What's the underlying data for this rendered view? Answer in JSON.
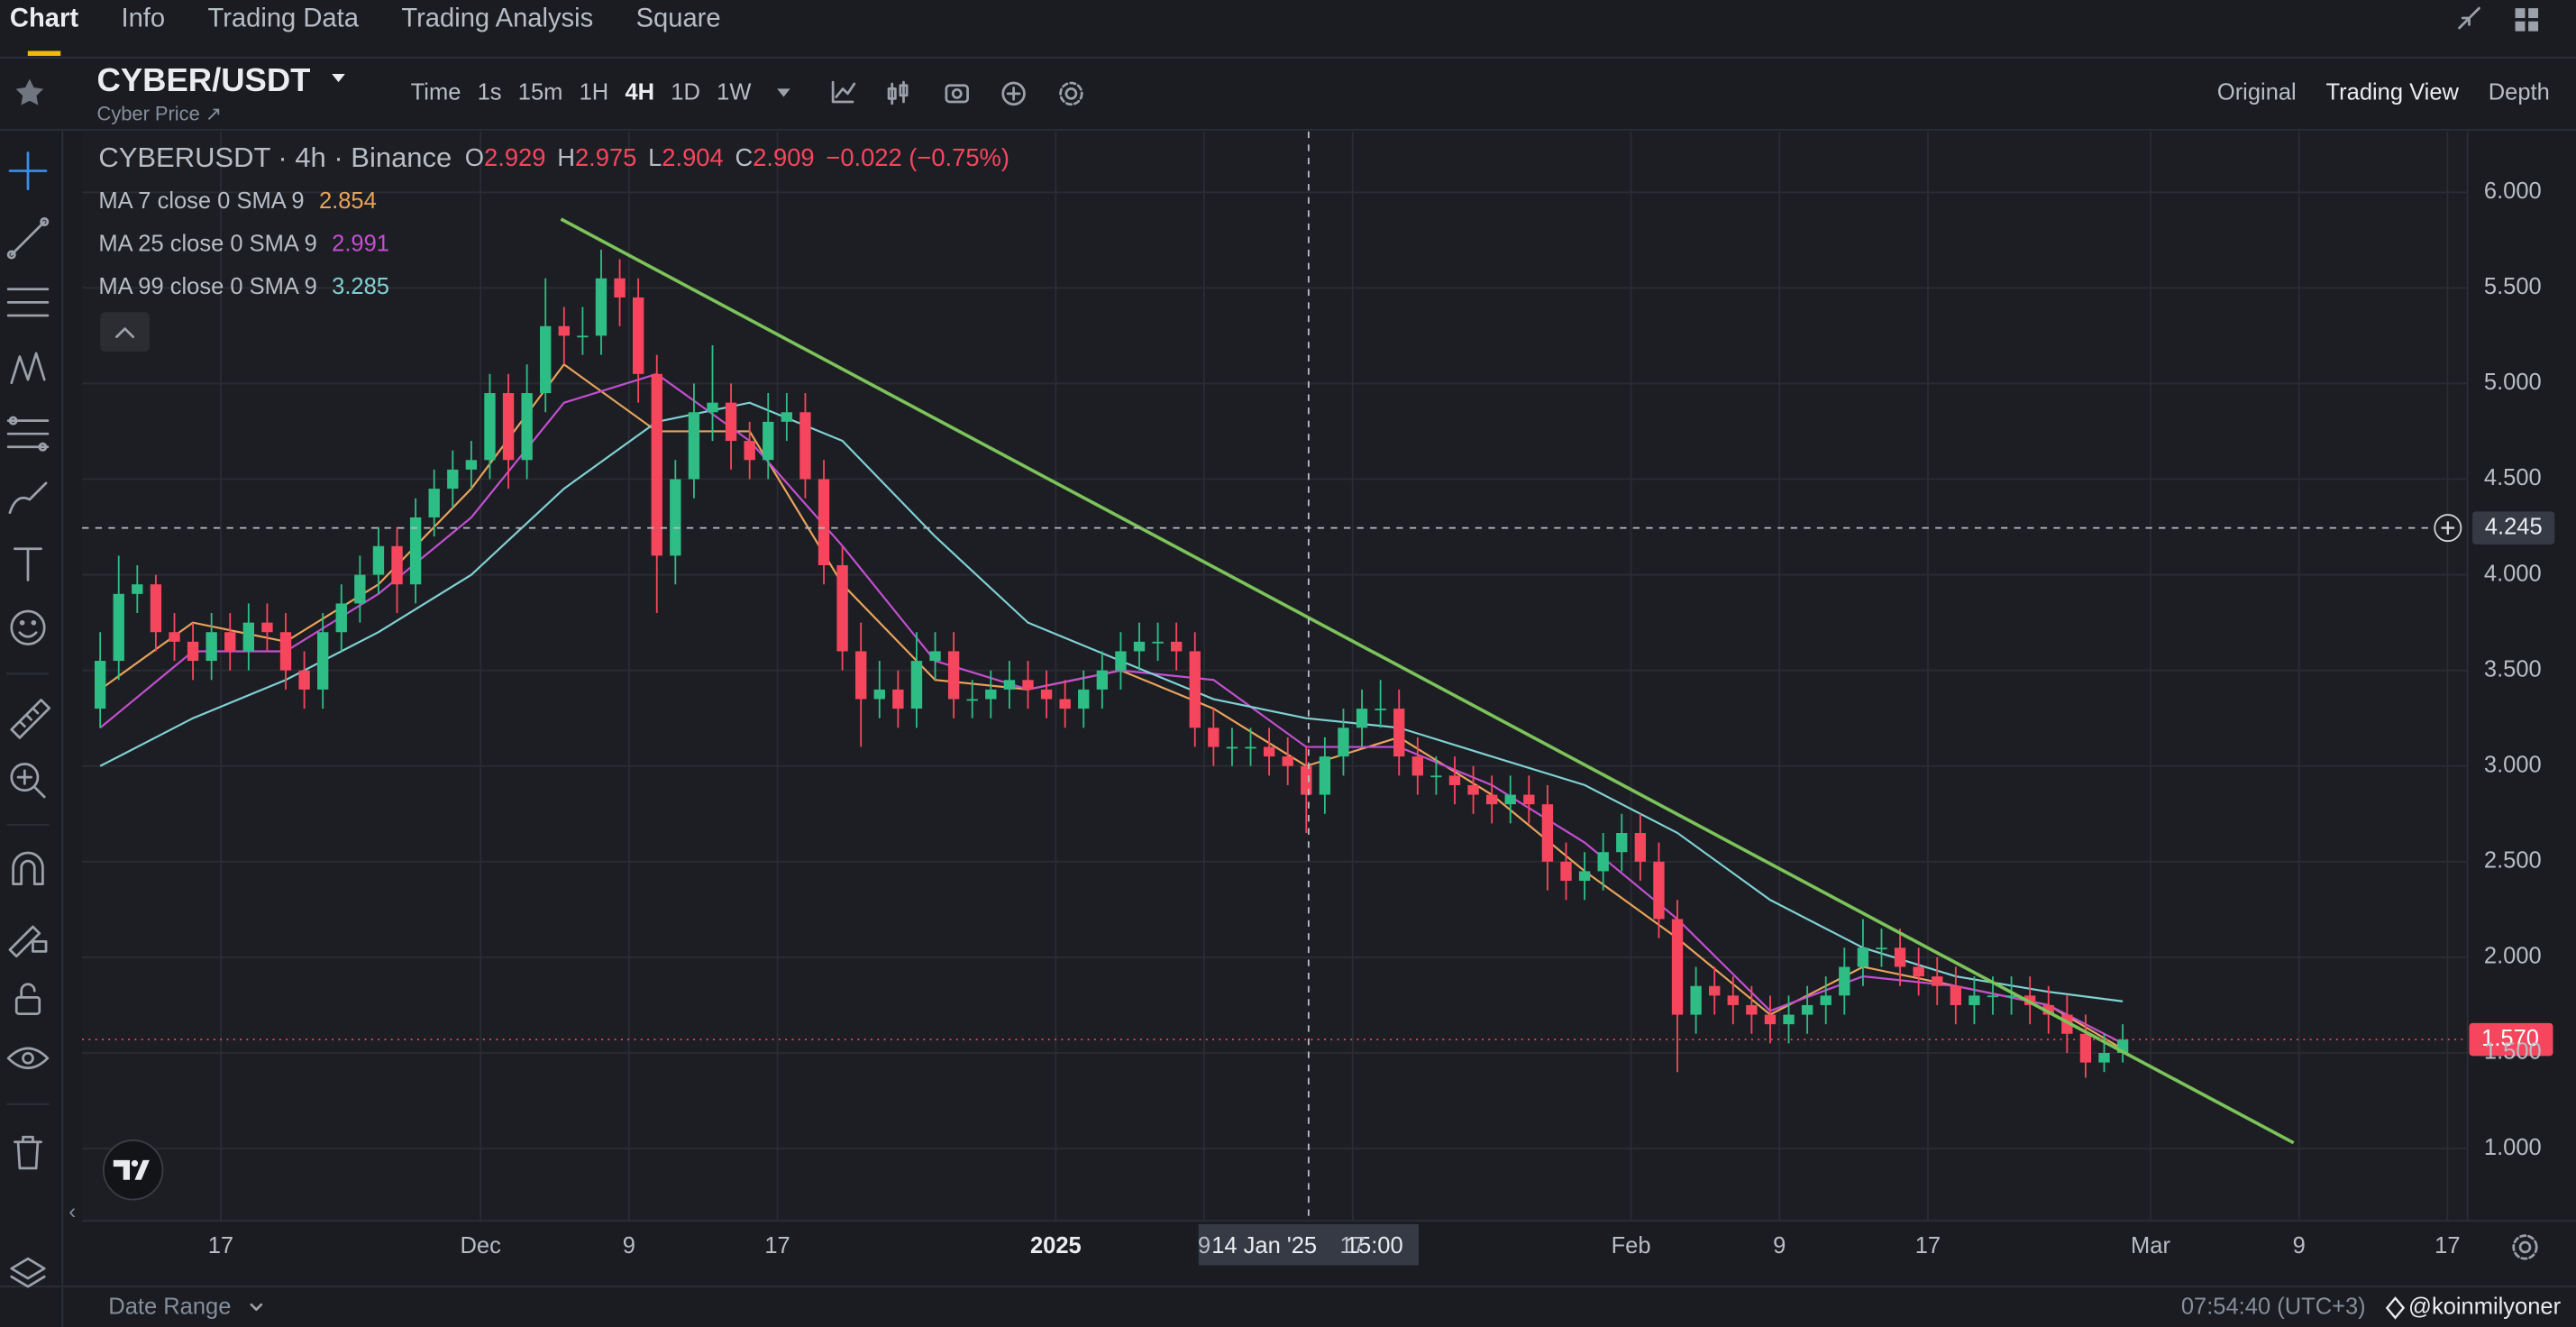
{
  "ui": {
    "tabs": [
      "Chart",
      "Info",
      "Trading Data",
      "Trading Analysis",
      "Square"
    ],
    "symbol": "CYBER/USDT",
    "subtitle": "Cyber Price ↗",
    "intervals": [
      "Time",
      "1s",
      "15m",
      "1H",
      "4H",
      "1D",
      "1W"
    ],
    "views": [
      "Original",
      "Trading View",
      "Depth"
    ],
    "selected": {
      "tab": "Chart",
      "interval": "4H",
      "view": "Trading View"
    },
    "footer": {
      "date_range": "Date Range",
      "clock": "07:54:40 (UTC+3)",
      "watermark": "@koinmilyoner"
    }
  },
  "chart_data": {
    "type": "candlestick",
    "title": "CYBERUSDT · 4h · Binance",
    "ohlc_letters": [
      "O",
      "H",
      "L",
      "C"
    ],
    "crosshair_candle": {
      "values": [
        2.929,
        2.975,
        2.904,
        2.909
      ],
      "change": "−0.022 (−0.75%)"
    },
    "up_color": "#2ebd85",
    "down_color": "#f6465d",
    "x": [
      "2024-11-10",
      "2024-11-11",
      "2024-11-12",
      "2024-11-13",
      "2024-11-14",
      "2024-11-15",
      "2024-11-16",
      "2024-11-17",
      "2024-11-18",
      "2024-11-19",
      "2024-11-20",
      "2024-11-21",
      "2024-11-22",
      "2024-11-23",
      "2024-11-24",
      "2024-11-25",
      "2024-11-26",
      "2024-11-27",
      "2024-11-28",
      "2024-11-29",
      "2024-11-30",
      "2024-12-01",
      "2024-12-02",
      "2024-12-03",
      "2024-12-04",
      "2024-12-05",
      "2024-12-06",
      "2024-12-07",
      "2024-12-08",
      "2024-12-09",
      "2024-12-10",
      "2024-12-11",
      "2024-12-12",
      "2024-12-13",
      "2024-12-14",
      "2024-12-15",
      "2024-12-16",
      "2024-12-17",
      "2024-12-18",
      "2024-12-19",
      "2024-12-20",
      "2024-12-21",
      "2024-12-22",
      "2024-12-23",
      "2024-12-24",
      "2024-12-25",
      "2024-12-26",
      "2024-12-27",
      "2024-12-28",
      "2024-12-29",
      "2024-12-30",
      "2024-12-31",
      "2025-01-01",
      "2025-01-02",
      "2025-01-03",
      "2025-01-04",
      "2025-01-05",
      "2025-01-06",
      "2025-01-07",
      "2025-01-08",
      "2025-01-09",
      "2025-01-10",
      "2025-01-11",
      "2025-01-12",
      "2025-01-13",
      "2025-01-14",
      "2025-01-15",
      "2025-01-16",
      "2025-01-17",
      "2025-01-18",
      "2025-01-19",
      "2025-01-20",
      "2025-01-21",
      "2025-01-22",
      "2025-01-23",
      "2025-01-24",
      "2025-01-25",
      "2025-01-26",
      "2025-01-27",
      "2025-01-28",
      "2025-01-29",
      "2025-01-30",
      "2025-01-31",
      "2025-02-01",
      "2025-02-02",
      "2025-02-03",
      "2025-02-04",
      "2025-02-05",
      "2025-02-06",
      "2025-02-07",
      "2025-02-08",
      "2025-02-09",
      "2025-02-10",
      "2025-02-11",
      "2025-02-12",
      "2025-02-13",
      "2025-02-14",
      "2025-02-15",
      "2025-02-16",
      "2025-02-17",
      "2025-02-18",
      "2025-02-19",
      "2025-02-20",
      "2025-02-21",
      "2025-02-22",
      "2025-02-23",
      "2025-02-24",
      "2025-02-25",
      "2025-02-26",
      "2025-02-27"
    ],
    "open": [
      3.3,
      3.55,
      3.9,
      3.95,
      3.7,
      3.65,
      3.55,
      3.7,
      3.6,
      3.75,
      3.7,
      3.5,
      3.4,
      3.7,
      3.85,
      4.0,
      4.15,
      3.95,
      4.3,
      4.45,
      4.55,
      4.6,
      4.95,
      4.6,
      4.95,
      5.3,
      5.25,
      5.25,
      5.55,
      5.45,
      5.05,
      4.1,
      4.5,
      4.85,
      4.9,
      4.7,
      4.6,
      4.8,
      4.85,
      4.5,
      4.05,
      3.6,
      3.35,
      3.4,
      3.3,
      3.55,
      3.6,
      3.35,
      3.35,
      3.4,
      3.45,
      3.4,
      3.35,
      3.3,
      3.4,
      3.5,
      3.6,
      3.65,
      3.65,
      3.6,
      3.2,
      3.1,
      3.1,
      3.1,
      3.05,
      3.0,
      2.85,
      3.05,
      3.2,
      3.3,
      3.3,
      3.05,
      2.95,
      2.95,
      2.9,
      2.85,
      2.8,
      2.85,
      2.8,
      2.5,
      2.4,
      2.45,
      2.55,
      2.65,
      2.5,
      2.2,
      1.7,
      1.85,
      1.8,
      1.75,
      1.7,
      1.65,
      1.7,
      1.75,
      1.8,
      1.95,
      2.05,
      2.05,
      1.95,
      1.9,
      1.85,
      1.75,
      1.8,
      1.8,
      1.8,
      1.75,
      1.7,
      1.6,
      1.45,
      1.5
    ],
    "high": [
      3.7,
      4.1,
      4.05,
      4.0,
      3.8,
      3.75,
      3.8,
      3.8,
      3.85,
      3.85,
      3.8,
      3.6,
      3.8,
      3.95,
      4.1,
      4.25,
      4.25,
      4.4,
      4.55,
      4.65,
      4.7,
      5.05,
      5.05,
      5.1,
      5.55,
      5.4,
      5.4,
      5.7,
      5.65,
      5.55,
      5.15,
      4.6,
      5.0,
      5.2,
      5.0,
      4.8,
      4.95,
      4.95,
      4.95,
      4.6,
      4.15,
      3.75,
      3.55,
      3.5,
      3.7,
      3.7,
      3.7,
      3.45,
      3.5,
      3.55,
      3.55,
      3.5,
      3.45,
      3.5,
      3.6,
      3.7,
      3.75,
      3.75,
      3.75,
      3.7,
      3.3,
      3.2,
      3.2,
      3.2,
      3.15,
      3.1,
      3.15,
      3.3,
      3.4,
      3.45,
      3.4,
      3.15,
      3.05,
      3.05,
      3.0,
      2.95,
      2.95,
      2.95,
      2.9,
      2.6,
      2.55,
      2.65,
      2.75,
      2.75,
      2.6,
      2.3,
      1.95,
      1.95,
      1.9,
      1.85,
      1.8,
      1.8,
      1.85,
      1.9,
      2.05,
      2.2,
      2.15,
      2.15,
      2.05,
      2.0,
      1.95,
      1.9,
      1.9,
      1.9,
      1.9,
      1.85,
      1.8,
      1.7,
      1.6,
      1.65
    ],
    "low": [
      3.2,
      3.45,
      3.8,
      3.6,
      3.55,
      3.45,
      3.45,
      3.5,
      3.5,
      3.6,
      3.4,
      3.3,
      3.3,
      3.6,
      3.75,
      3.9,
      3.8,
      3.85,
      4.2,
      4.35,
      4.45,
      4.5,
      4.45,
      4.5,
      4.85,
      5.1,
      5.15,
      5.15,
      5.3,
      4.9,
      3.8,
      3.95,
      4.4,
      4.7,
      4.55,
      4.5,
      4.5,
      4.7,
      4.4,
      3.95,
      3.5,
      3.1,
      3.25,
      3.2,
      3.2,
      3.45,
      3.25,
      3.25,
      3.25,
      3.3,
      3.3,
      3.25,
      3.2,
      3.2,
      3.3,
      3.4,
      3.5,
      3.55,
      3.5,
      3.1,
      3.0,
      3.0,
      3.0,
      2.95,
      2.9,
      2.65,
      2.75,
      2.95,
      3.1,
      3.2,
      2.95,
      2.85,
      2.85,
      2.8,
      2.75,
      2.7,
      2.7,
      2.7,
      2.35,
      2.3,
      2.3,
      2.35,
      2.45,
      2.4,
      2.1,
      1.4,
      1.6,
      1.7,
      1.65,
      1.6,
      1.55,
      1.55,
      1.6,
      1.65,
      1.7,
      1.85,
      1.95,
      1.85,
      1.8,
      1.75,
      1.65,
      1.65,
      1.7,
      1.7,
      1.65,
      1.6,
      1.5,
      1.37,
      1.4,
      1.45
    ],
    "close": [
      3.55,
      3.9,
      3.95,
      3.7,
      3.65,
      3.55,
      3.7,
      3.6,
      3.75,
      3.7,
      3.5,
      3.4,
      3.7,
      3.85,
      4.0,
      4.15,
      3.95,
      4.3,
      4.45,
      4.55,
      4.6,
      4.95,
      4.6,
      4.95,
      5.3,
      5.25,
      5.25,
      5.55,
      5.45,
      5.05,
      4.1,
      4.5,
      4.85,
      4.9,
      4.7,
      4.6,
      4.8,
      4.85,
      4.5,
      4.05,
      3.6,
      3.35,
      3.4,
      3.3,
      3.55,
      3.6,
      3.35,
      3.35,
      3.4,
      3.45,
      3.4,
      3.35,
      3.3,
      3.4,
      3.5,
      3.6,
      3.65,
      3.65,
      3.6,
      3.2,
      3.1,
      3.1,
      3.1,
      3.05,
      3.0,
      2.85,
      3.05,
      3.2,
      3.3,
      3.3,
      3.05,
      2.95,
      2.95,
      2.9,
      2.85,
      2.8,
      2.85,
      2.8,
      2.5,
      2.4,
      2.45,
      2.55,
      2.65,
      2.5,
      2.2,
      1.7,
      1.85,
      1.8,
      1.75,
      1.7,
      1.65,
      1.7,
      1.75,
      1.8,
      1.95,
      2.05,
      2.05,
      1.95,
      1.9,
      1.85,
      1.75,
      1.8,
      1.8,
      1.8,
      1.75,
      1.7,
      1.6,
      1.45,
      1.5,
      1.57
    ],
    "ma_x": [
      "2024-11-10",
      "2024-11-15",
      "2024-11-20",
      "2024-11-25",
      "2024-11-30",
      "2024-12-05",
      "2024-12-10",
      "2024-12-15",
      "2024-12-20",
      "2024-12-25",
      "2024-12-30",
      "2025-01-04",
      "2025-01-09",
      "2025-01-14",
      "2025-01-19",
      "2025-01-24",
      "2025-01-29",
      "2025-02-03",
      "2025-02-08",
      "2025-02-13",
      "2025-02-18",
      "2025-02-23",
      "2025-02-27"
    ],
    "indicators": [
      {
        "name": "MA 7 close 0 SMA 9",
        "color": "#e8a35c",
        "last": 2.854,
        "values": [
          3.4,
          3.75,
          3.65,
          3.95,
          4.45,
          5.1,
          4.75,
          4.75,
          3.95,
          3.45,
          3.4,
          3.5,
          3.3,
          3.0,
          3.15,
          2.85,
          2.45,
          2.1,
          1.7,
          1.95,
          1.85,
          1.75,
          1.52
        ]
      },
      {
        "name": "MA 25 close 0 SMA 9",
        "color": "#c34fd1",
        "last": 2.991,
        "values": [
          3.2,
          3.6,
          3.6,
          3.9,
          4.3,
          4.9,
          5.05,
          4.7,
          4.15,
          3.55,
          3.4,
          3.5,
          3.45,
          3.1,
          3.1,
          2.9,
          2.6,
          2.2,
          1.72,
          1.9,
          1.85,
          1.75,
          1.55
        ]
      },
      {
        "name": "MA 99 close 0 SMA 9",
        "color": "#7fd1d4",
        "last": 3.285,
        "values": [
          3.0,
          3.25,
          3.45,
          3.7,
          4.0,
          4.45,
          4.8,
          4.9,
          4.7,
          4.2,
          3.75,
          3.55,
          3.35,
          3.25,
          3.2,
          3.05,
          2.9,
          2.65,
          2.3,
          2.05,
          1.9,
          1.82,
          1.77
        ]
      }
    ],
    "trendline": {
      "color": "#7cc35a",
      "x": [
        "2024-12-05T08:00",
        "2025-03-08T17:00"
      ],
      "y": [
        5.86,
        1.03
      ]
    },
    "crosshair": {
      "x": "2025-01-14T15:00",
      "date_label": "14 Jan '25",
      "time_label": "15:00",
      "price": 4.245
    },
    "last_price": {
      "value": 1.57,
      "label": "1.570"
    },
    "xlim": [
      "2024-11-09T12:42",
      "2025-03-18T02:00"
    ],
    "xticks": [
      {
        "value": "2024-11-17",
        "label": "17"
      },
      {
        "value": "2024-12-01",
        "label": "Dec"
      },
      {
        "value": "2024-12-09",
        "label": "9"
      },
      {
        "value": "2024-12-17",
        "label": "17"
      },
      {
        "value": "2025-01-01",
        "label": "2025"
      },
      {
        "value": "2025-01-09",
        "label": "9"
      },
      {
        "value": "2025-01-17",
        "label": "17"
      },
      {
        "value": "2025-02-01",
        "label": "Feb"
      },
      {
        "value": "2025-02-09",
        "label": "9"
      },
      {
        "value": "2025-02-17",
        "label": "17"
      },
      {
        "value": "2025-03-01",
        "label": "Mar"
      },
      {
        "value": "2025-03-09",
        "label": "9"
      },
      {
        "value": "2025-03-17",
        "label": "17"
      }
    ],
    "ylim": [
      0.622,
      6.318
    ],
    "yticks": [
      {
        "value": 6,
        "label": "6.000"
      },
      {
        "value": 5.5,
        "label": "5.500"
      },
      {
        "value": 5,
        "label": "5.000"
      },
      {
        "value": 4.5,
        "label": "4.500"
      },
      {
        "value": 4,
        "label": "4.000"
      },
      {
        "value": 3.5,
        "label": "3.500"
      },
      {
        "value": 3,
        "label": "3.000"
      },
      {
        "value": 2.5,
        "label": "2.500"
      },
      {
        "value": 2,
        "label": "2.000"
      },
      {
        "value": 1.5,
        "label": "1.500"
      },
      {
        "value": 1,
        "label": "1.000"
      }
    ],
    "grid": true
  }
}
